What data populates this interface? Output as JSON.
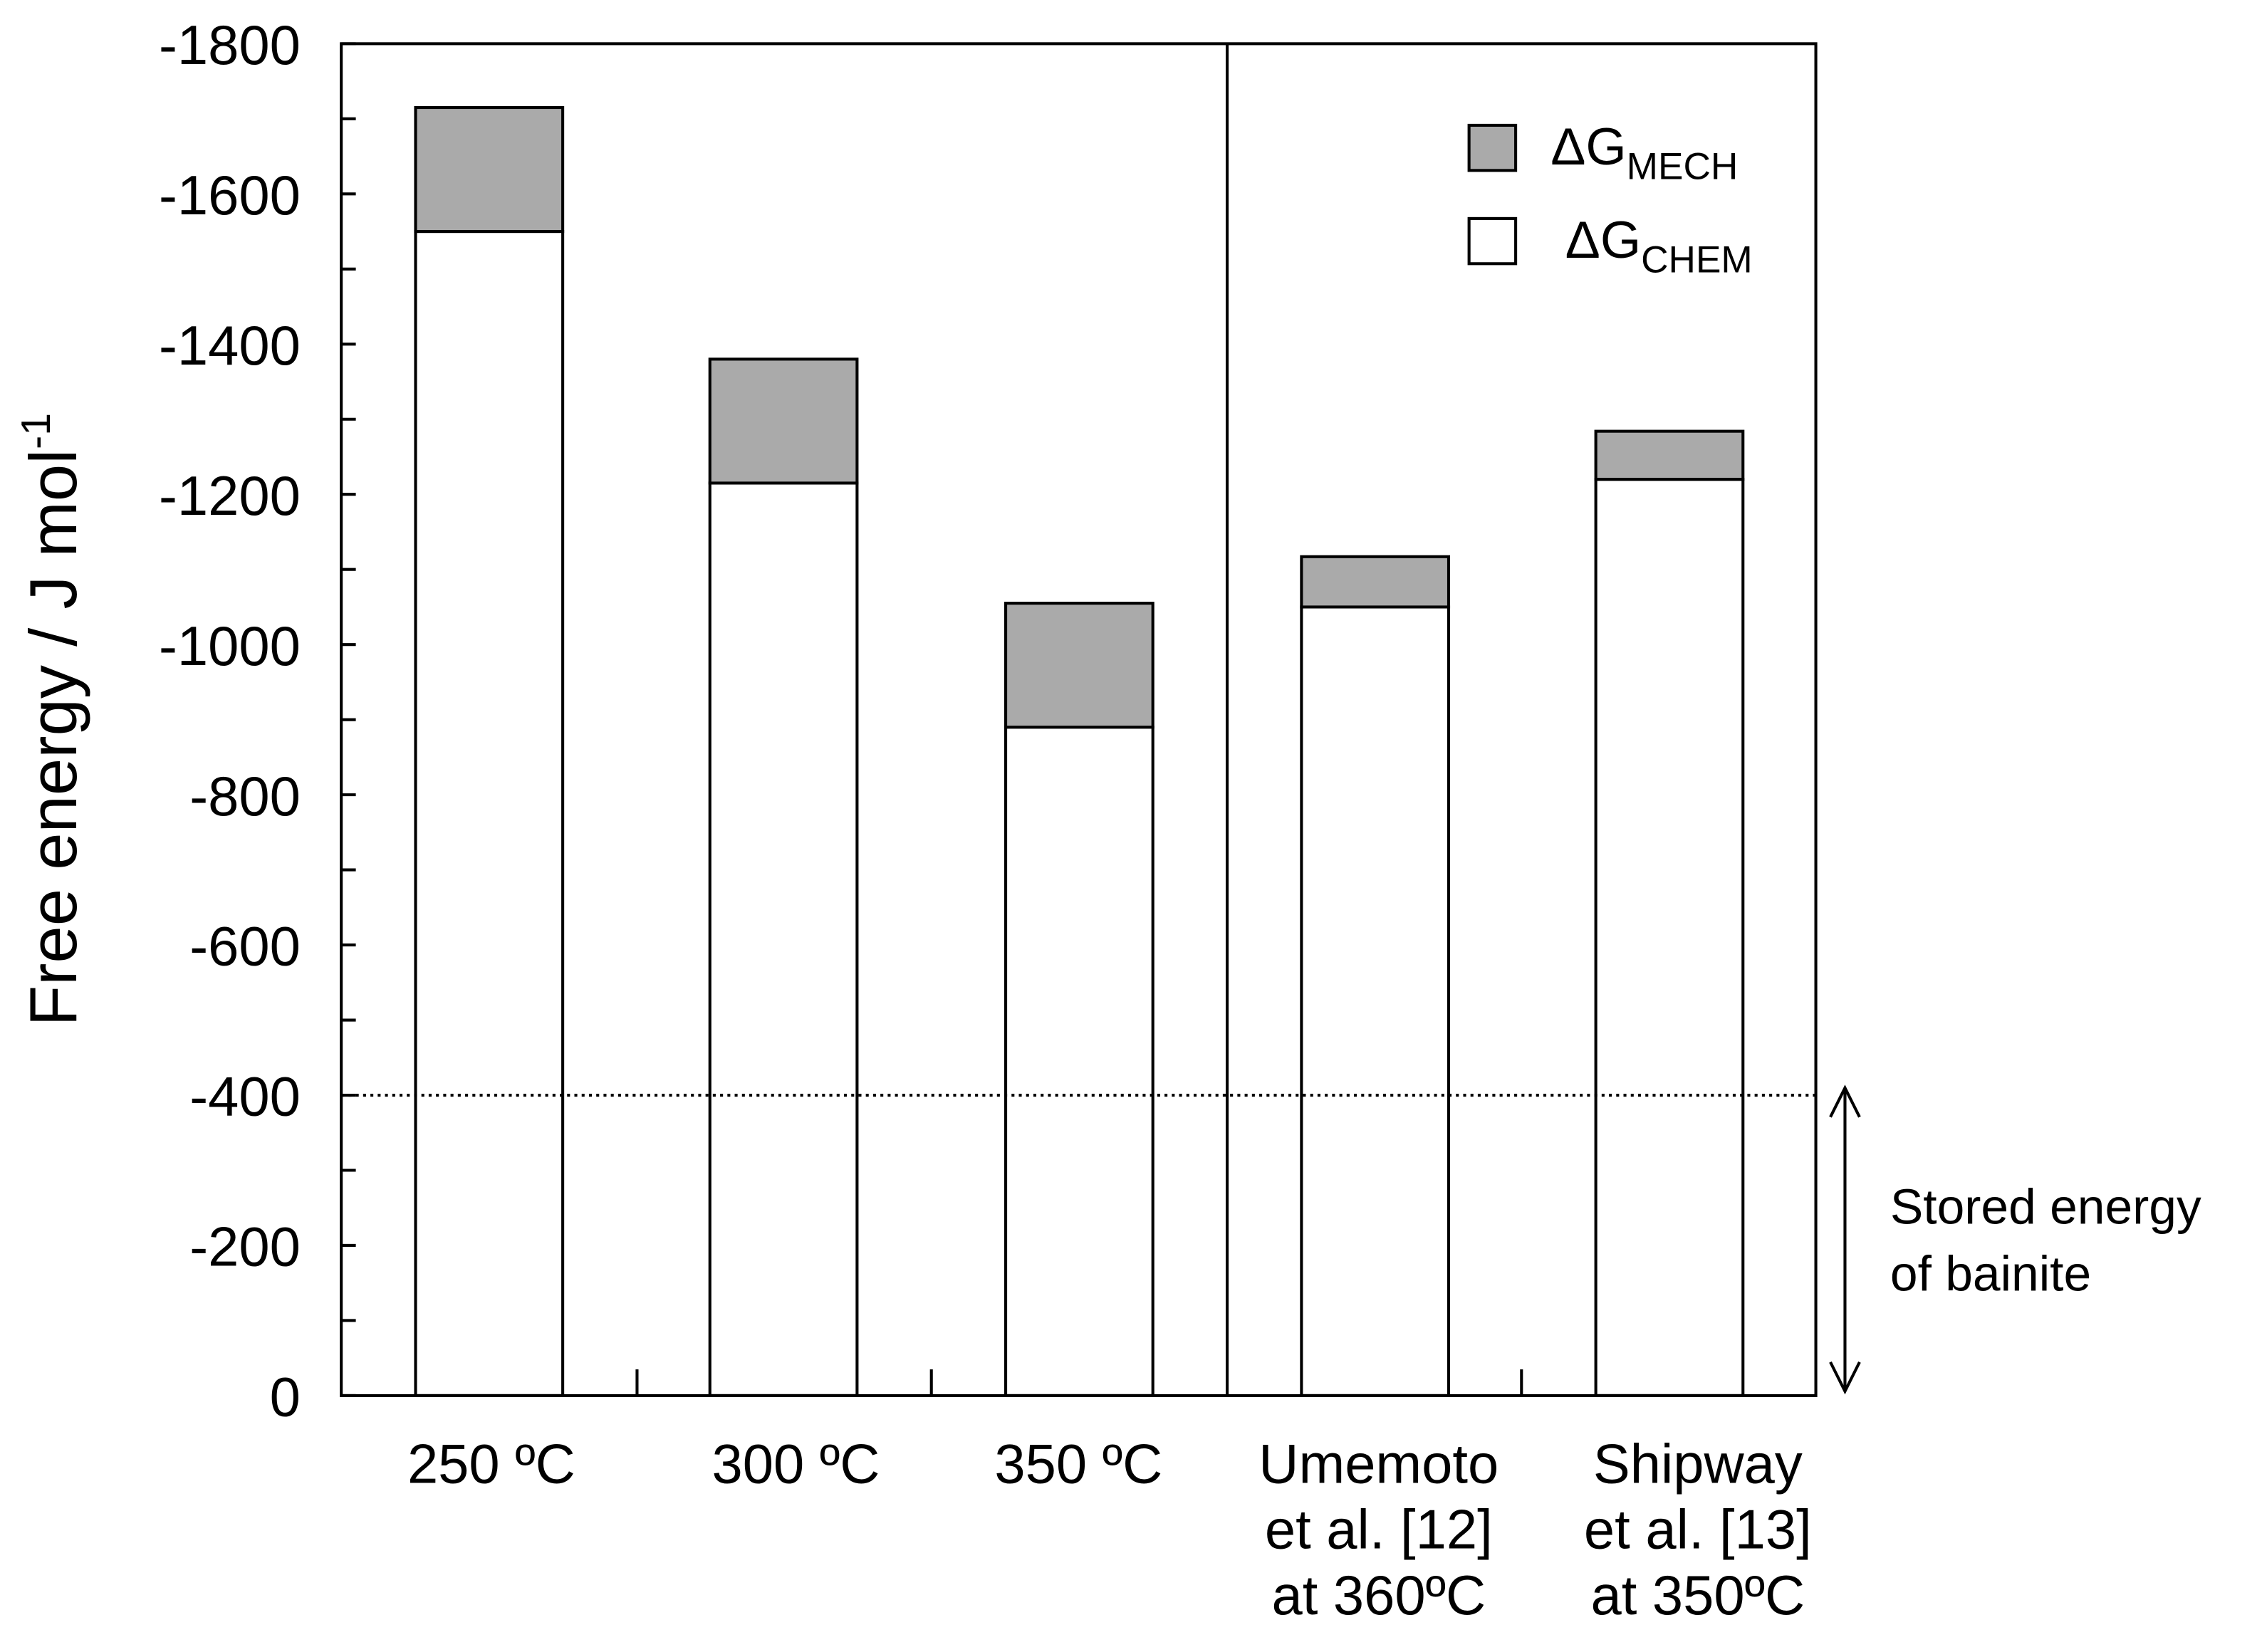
{
  "chart_data": {
    "type": "bar",
    "stacked": true,
    "title": "",
    "xlabel": "",
    "ylabel": "Free energy / J mol",
    "ylabel_superscript": "-1",
    "ylim": [
      0,
      -1800
    ],
    "yticks": [
      "0",
      "-200",
      "-400",
      "-600",
      "-800",
      "-1000",
      "-1200",
      "-1400",
      "-1600",
      "-1800"
    ],
    "ytick_values": [
      0,
      -200,
      -400,
      -600,
      -800,
      -1000,
      -1200,
      -1400,
      -1600,
      -1800
    ],
    "grid": false,
    "categories": [
      [
        "250 ºC"
      ],
      [
        "300 ºC"
      ],
      [
        "350 ºC"
      ],
      [
        "Umemoto",
        "et al. [12]",
        "at 360ºC"
      ],
      [
        "Shipway",
        "et al. [13]",
        "at 350ºC"
      ]
    ],
    "series": [
      {
        "name": "ΔG",
        "subscript": "CHEM",
        "color": "#ffffff",
        "values": [
          -1550,
          -1215,
          -890,
          -1050,
          -1220
        ]
      },
      {
        "name": "ΔG",
        "subscript": "MECH",
        "color": "#aaaaaa",
        "values": [
          -165,
          -165,
          -165,
          -67,
          -64
        ]
      }
    ],
    "legend_placement": "top-right",
    "reference_line": {
      "value": -400,
      "style": "dotted"
    },
    "annotation": {
      "lines": [
        "Stored energy",
        "of bainite"
      ],
      "range": [
        0,
        -400
      ]
    }
  }
}
